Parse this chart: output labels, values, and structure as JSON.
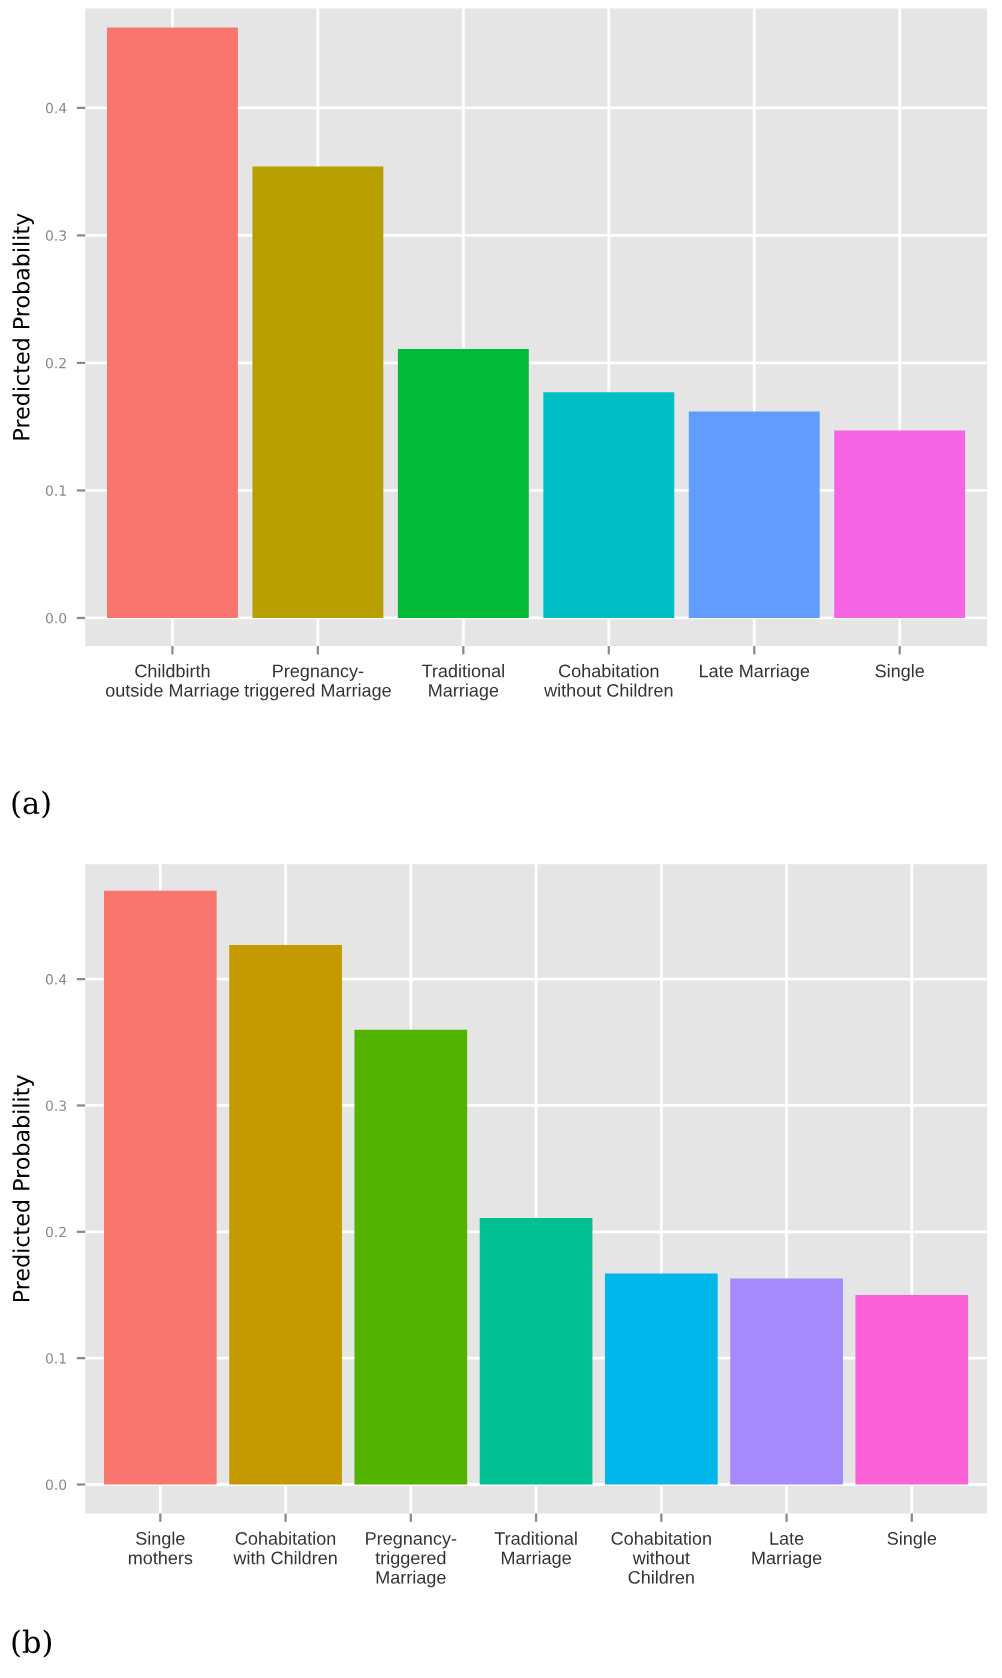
{
  "chart_data": [
    {
      "type": "bar",
      "ylabel": "Predicted Probability",
      "annotations": [
        "(a)"
      ],
      "categories": [
        "Childbirth\noutside Marriage",
        "Pregnancy-\ntriggered Marriage",
        "Traditional\nMarriage",
        "Cohabitation\nwithout Children",
        "Late Marriage",
        "Single"
      ],
      "values": [
        0.463,
        0.354,
        0.211,
        0.177,
        0.162,
        0.147
      ],
      "colors": [
        "#f8766d",
        "#b79f00",
        "#00ba38",
        "#00bfc4",
        "#619cff",
        "#f564e3"
      ],
      "ylim": [
        -0.022,
        0.478
      ],
      "yticks": [
        {
          "value": 0,
          "label": "0.0"
        },
        0.1,
        0.2,
        0.3,
        0.4
      ],
      "grid": true
    },
    {
      "type": "bar",
      "ylabel": "Predicted Probability",
      "annotations": [
        "(b)"
      ],
      "categories": [
        "Single\nmothers",
        "Cohabitation\nwith Children",
        "Pregnancy-\ntriggered\nMarriage",
        "Traditional\nMarriage",
        "Cohabitation\nwithout\nChildren",
        "Late\nMarriage",
        "Single"
      ],
      "values": [
        0.47,
        0.427,
        0.36,
        0.211,
        0.167,
        0.163,
        0.15
      ],
      "colors": [
        "#f8766d",
        "#c49a00",
        "#53b400",
        "#00c094",
        "#00b6eb",
        "#a58aff",
        "#fb61d7"
      ],
      "ylim": [
        -0.023,
        0.491
      ],
      "yticks": [
        {
          "value": 0,
          "label": "0.0"
        },
        0.1,
        0.2,
        0.3,
        0.4
      ],
      "grid": true
    }
  ]
}
